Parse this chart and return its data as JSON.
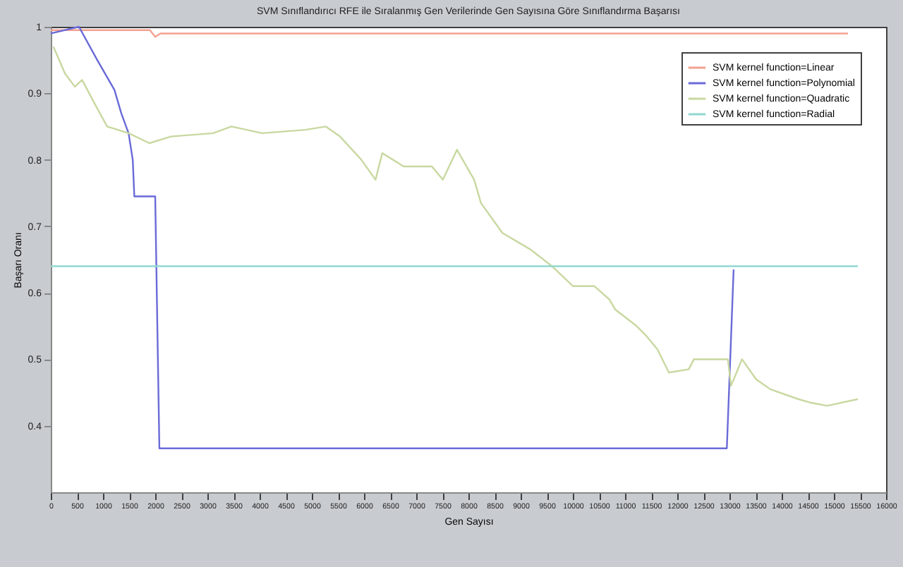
{
  "chart_data": {
    "type": "line",
    "title": "SVM Sınıflandırıcı RFE ile Sıralanmış Gen Verilerinde Gen Sayısına Göre Sınıflandırma Başarısı",
    "xlabel": "Gen Sayısı",
    "ylabel": "Başarı Oranı",
    "xlim": [
      0,
      16000
    ],
    "xticks": [
      0,
      500,
      1000,
      1500,
      2000,
      2500,
      3000,
      3500,
      4000,
      4500,
      5000,
      5500,
      6000,
      6500,
      7000,
      7500,
      8000,
      8500,
      9000,
      9500,
      10000,
      10500,
      11000,
      11500,
      12000,
      12500,
      13000,
      13500,
      14000,
      14500,
      15000,
      15500,
      16000
    ],
    "ylim": [
      0.3,
      1
    ],
    "yticks": [
      0.4,
      0.5,
      0.6,
      0.7,
      0.8,
      0.9,
      {
        "value": 1,
        "label": "1"
      }
    ],
    "grid": false,
    "legend": "top right",
    "line_style": "solid",
    "marker": "none",
    "series": [
      {
        "name": "SVM kernel function=Linear",
        "color": "#f4a090",
        "x": [
          0,
          1900,
          2000,
          2100,
          15270
        ],
        "values": [
          0.995,
          0.995,
          0.985,
          0.99,
          0.99
        ]
      },
      {
        "name": "SVM kernel function=Polynomial",
        "color": "#6a6ad8",
        "x": [
          0,
          540,
          890,
          1220,
          1350,
          1490,
          1570,
          1600,
          2000,
          2080,
          12950,
          13080
        ],
        "values": [
          0.99,
          1.0,
          0.95,
          0.905,
          0.87,
          0.84,
          0.8,
          0.745,
          0.745,
          0.366,
          0.366,
          0.635
        ]
      },
      {
        "name": "SVM kernel function=Quadratic",
        "color": "#c8d8a0",
        "x": [
          50,
          270,
          460,
          600,
          870,
          1080,
          1490,
          1890,
          2300,
          3110,
          3460,
          4050,
          4870,
          5270,
          5540,
          5950,
          6220,
          6350,
          6760,
          7300,
          7510,
          7780,
          8110,
          8240,
          8650,
          9190,
          9600,
          10000,
          10410,
          10700,
          10810,
          11220,
          11410,
          11620,
          11840,
          12220,
          12320,
          12970,
          13030,
          13240,
          13510,
          13780,
          14320,
          14540,
          14870,
          15460
        ],
        "values": [
          0.97,
          0.93,
          0.91,
          0.92,
          0.88,
          0.85,
          0.84,
          0.825,
          0.835,
          0.84,
          0.85,
          0.84,
          0.845,
          0.85,
          0.835,
          0.8,
          0.77,
          0.81,
          0.79,
          0.79,
          0.77,
          0.815,
          0.77,
          0.735,
          0.69,
          0.665,
          0.64,
          0.61,
          0.61,
          0.59,
          0.575,
          0.55,
          0.535,
          0.515,
          0.48,
          0.485,
          0.5,
          0.5,
          0.46,
          0.5,
          0.47,
          0.455,
          0.44,
          0.435,
          0.43,
          0.44
        ]
      },
      {
        "name": "SVM kernel function=Radial",
        "color": "#90d8d0",
        "x": [
          0,
          15460
        ],
        "values": [
          0.64,
          0.64
        ]
      }
    ]
  }
}
